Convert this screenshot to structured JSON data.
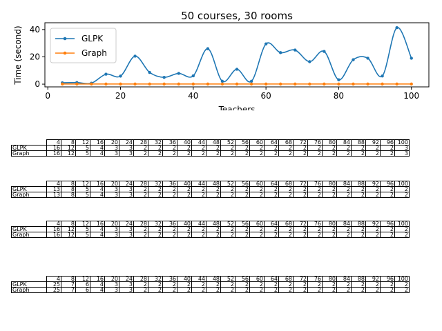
{
  "chart_data": {
    "type": "line",
    "title": "50 courses, 30 rooms",
    "xlabel": "Teachers",
    "ylabel": "Time (second)",
    "xlim": [
      -0.8,
      104.8
    ],
    "ylim": [
      -2,
      45
    ],
    "xticks": [
      0,
      20,
      40,
      60,
      80,
      100
    ],
    "yticks": [
      0,
      20,
      40
    ],
    "grid": false,
    "legend_position": "top-left",
    "x": [
      4,
      8,
      12,
      16,
      20,
      24,
      28,
      32,
      36,
      40,
      44,
      48,
      52,
      56,
      60,
      64,
      68,
      72,
      76,
      80,
      84,
      88,
      92,
      96,
      100
    ],
    "series": [
      {
        "name": "GLPK",
        "color": "#1f77b4",
        "values": [
          1,
          1.2,
          0.7,
          7.3,
          5.9,
          20.5,
          8.6,
          5,
          7.9,
          6.1,
          26,
          2.1,
          10.9,
          2.1,
          29.5,
          23.1,
          25,
          16.5,
          24,
          3.2,
          17.9,
          19,
          6,
          41.4,
          19
        ]
      },
      {
        "name": "Graph",
        "color": "#ff7f0e",
        "values": [
          0.1,
          0.1,
          0.1,
          0.1,
          0.1,
          0.1,
          0.1,
          0.1,
          0.1,
          0.1,
          0.1,
          0.1,
          0.1,
          0.1,
          0.1,
          0.1,
          0.1,
          0.1,
          0.1,
          0.1,
          0.1,
          0.1,
          0.1,
          0.1,
          0.1
        ]
      }
    ]
  },
  "tables": [
    {
      "header": [
        "4",
        "8",
        "12",
        "16",
        "20",
        "24",
        "28",
        "32",
        "36",
        "40",
        "44",
        "48",
        "52",
        "56",
        "60",
        "64",
        "68",
        "72",
        "76",
        "80",
        "84",
        "88",
        "92",
        "96",
        "100"
      ],
      "rows": [
        {
          "label": "GLPK",
          "cells": [
            "16",
            "12",
            "5",
            "4",
            "3",
            "3",
            "2",
            "2",
            "2",
            "2",
            "2",
            "2",
            "2",
            "2",
            "2",
            "2",
            "2",
            "2",
            "2",
            "2",
            "2",
            "2",
            "2",
            "2",
            "3"
          ]
        },
        {
          "label": "Graph",
          "cells": [
            "16",
            "12",
            "5",
            "4",
            "3",
            "3",
            "2",
            "2",
            "2",
            "2",
            "2",
            "2",
            "2",
            "2",
            "2",
            "2",
            "2",
            "2",
            "2",
            "2",
            "2",
            "2",
            "2",
            "2",
            "3"
          ]
        }
      ]
    },
    {
      "header": [
        "4",
        "8",
        "12",
        "16",
        "20",
        "24",
        "28",
        "32",
        "36",
        "40",
        "44",
        "48",
        "52",
        "56",
        "60",
        "64",
        "68",
        "72",
        "76",
        "80",
        "84",
        "88",
        "92",
        "96",
        "100"
      ],
      "rows": [
        {
          "label": "GLPK",
          "cells": [
            "13",
            "8",
            "5",
            "4",
            "3",
            "3",
            "2",
            "2",
            "2",
            "2",
            "2",
            "2",
            "2",
            "2",
            "2",
            "2",
            "2",
            "2",
            "2",
            "2",
            "2",
            "2",
            "2",
            "2",
            "2"
          ]
        },
        {
          "label": "Graph",
          "cells": [
            "13",
            "8",
            "5",
            "4",
            "3",
            "3",
            "2",
            "2",
            "2",
            "2",
            "2",
            "2",
            "2",
            "2",
            "2",
            "2",
            "2",
            "2",
            "2",
            "2",
            "2",
            "2",
            "2",
            "2",
            "2"
          ]
        }
      ]
    },
    {
      "header": [
        "4",
        "8",
        "12",
        "16",
        "20",
        "24",
        "28",
        "32",
        "36",
        "40",
        "44",
        "48",
        "52",
        "56",
        "60",
        "64",
        "68",
        "72",
        "76",
        "80",
        "84",
        "88",
        "92",
        "96",
        "100"
      ],
      "rows": [
        {
          "label": "GLPK",
          "cells": [
            "16",
            "12",
            "5",
            "4",
            "3",
            "3",
            "2",
            "2",
            "2",
            "2",
            "2",
            "2",
            "2",
            "2",
            "2",
            "2",
            "2",
            "2",
            "2",
            "2",
            "2",
            "2",
            "2",
            "2",
            "2"
          ]
        },
        {
          "label": "Graph",
          "cells": [
            "16",
            "12",
            "5",
            "4",
            "3",
            "3",
            "2",
            "2",
            "2",
            "2",
            "2",
            "2",
            "2",
            "2",
            "2",
            "2",
            "2",
            "2",
            "2",
            "2",
            "2",
            "2",
            "2",
            "2",
            "2"
          ]
        }
      ]
    },
    {
      "header": [
        "4",
        "8",
        "12",
        "16",
        "20",
        "24",
        "28",
        "32",
        "36",
        "40",
        "44",
        "48",
        "52",
        "56",
        "60",
        "64",
        "68",
        "72",
        "76",
        "80",
        "84",
        "88",
        "92",
        "96",
        "100"
      ],
      "rows": [
        {
          "label": "GLPK",
          "cells": [
            "25",
            "7",
            "6",
            "4",
            "3",
            "3",
            "2",
            "2",
            "2",
            "2",
            "2",
            "2",
            "2",
            "2",
            "2",
            "2",
            "2",
            "2",
            "2",
            "2",
            "2",
            "2",
            "2",
            "2",
            "2"
          ]
        },
        {
          "label": "Graph",
          "cells": [
            "25",
            "7",
            "6",
            "4",
            "3",
            "3",
            "2",
            "2",
            "2",
            "2",
            "2",
            "2",
            "2",
            "2",
            "2",
            "2",
            "2",
            "2",
            "2",
            "2",
            "2",
            "2",
            "2",
            "2",
            "2"
          ]
        }
      ]
    }
  ]
}
